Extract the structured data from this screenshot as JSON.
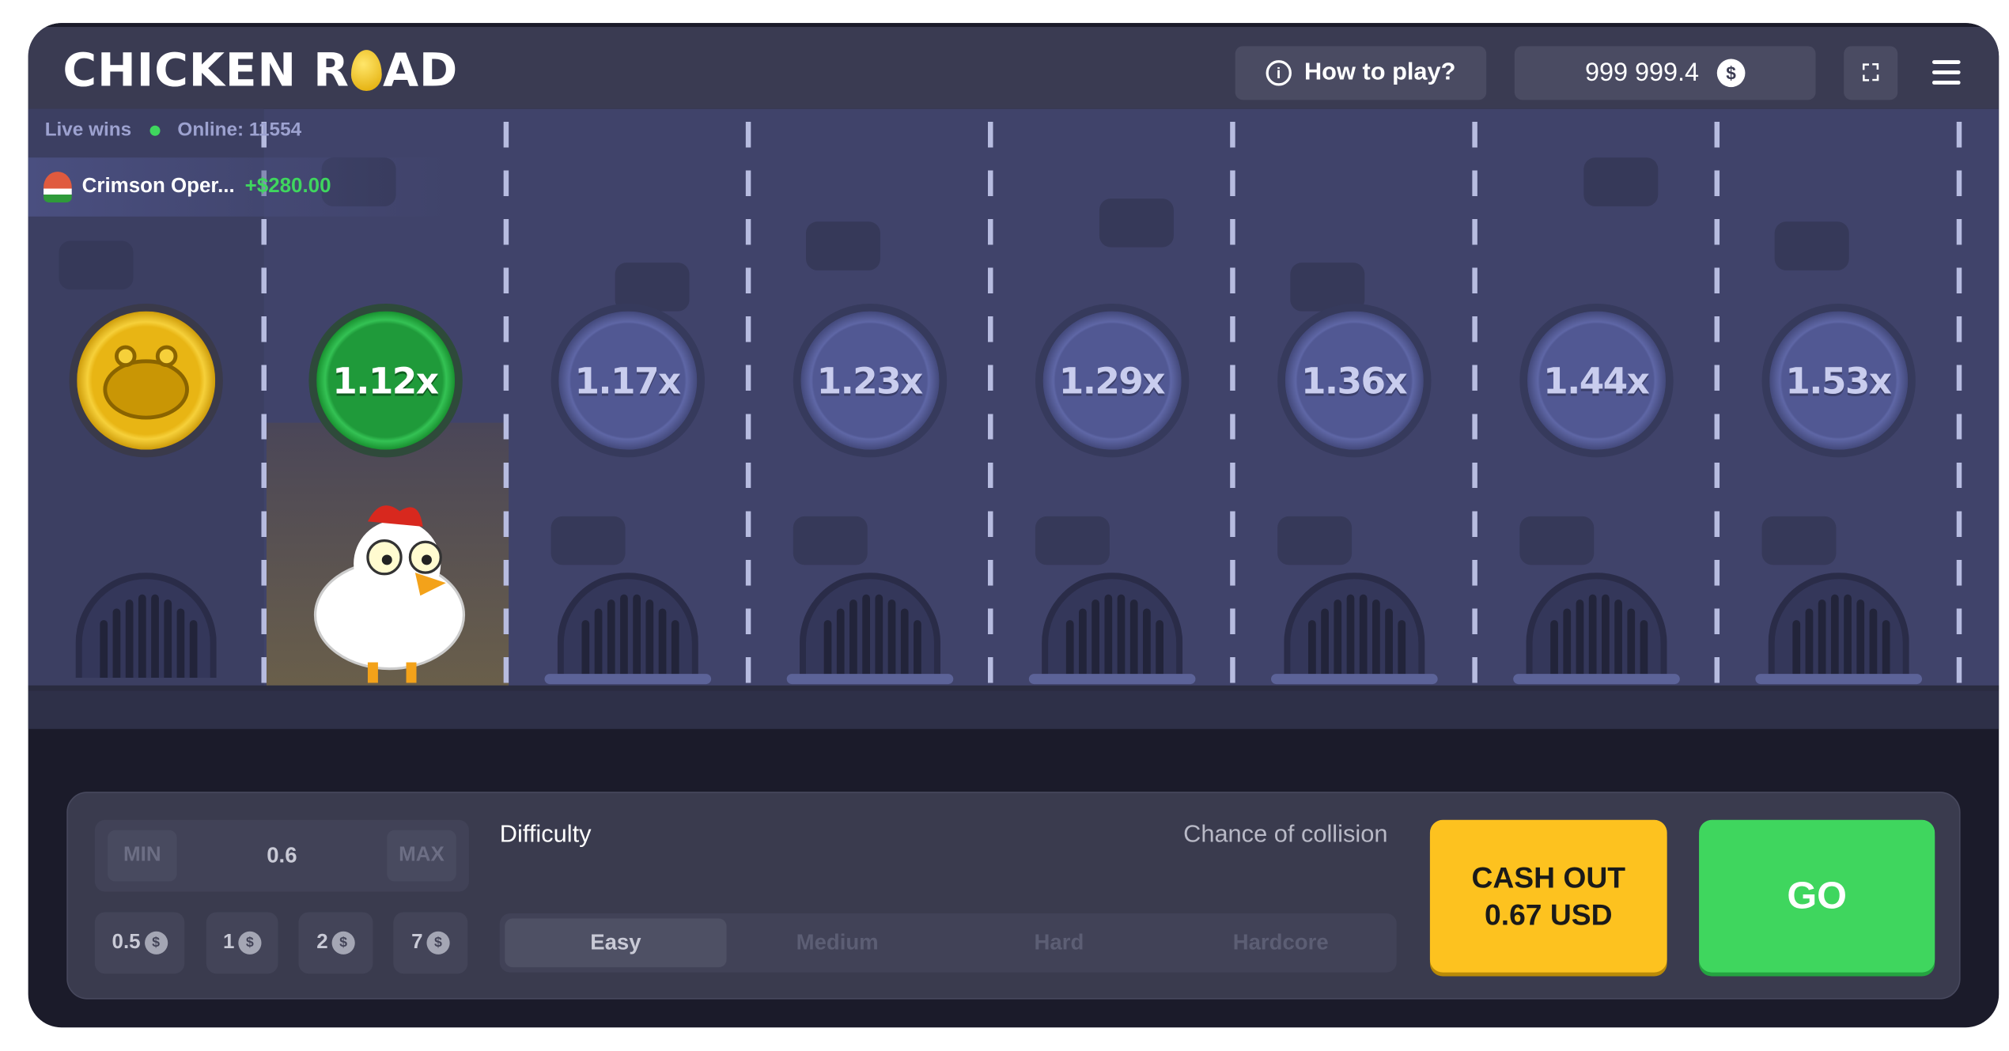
{
  "header": {
    "logo": "CHICKEN ROAD",
    "how_to_play": "How to play?",
    "balance": "999 999.4",
    "currency_icon": "dollar-coin-icon",
    "fullscreen_icon": "fullscreen-icon",
    "menu_icon": "hamburger-menu-icon"
  },
  "live": {
    "label": "Live wins",
    "online": "Online: 11554",
    "win_user": "Crimson Oper...",
    "win_amount": "+$280.00"
  },
  "lanes": {
    "multipliers": [
      "1.12x",
      "1.17x",
      "1.23x",
      "1.29x",
      "1.36x",
      "1.44x",
      "1.53x"
    ],
    "active_index": 0
  },
  "controls": {
    "min": "MIN",
    "max": "MAX",
    "bet": "0.6",
    "chips": [
      "0.5",
      "1",
      "2",
      "7"
    ],
    "difficulty_label": "Difficulty",
    "collision_label": "Chance of collision",
    "difficulties": [
      "Easy",
      "Medium",
      "Hard",
      "Hardcore"
    ],
    "selected_difficulty": "Easy",
    "cash_out_line1": "CASH OUT",
    "cash_out_line2": "0.67 USD",
    "go": "GO"
  },
  "colors": {
    "accent_green": "#3fd65e",
    "cash_out_yellow": "#fdc21f",
    "road": "#40436a"
  }
}
